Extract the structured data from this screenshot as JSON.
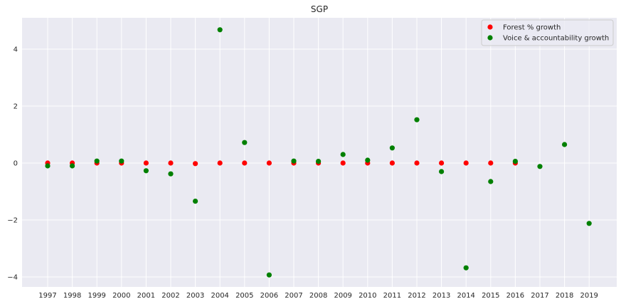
{
  "chart_data": {
    "type": "scatter",
    "title": "SGP",
    "xlabel": "",
    "ylabel": "",
    "x": [
      "1997",
      "1998",
      "1999",
      "2000",
      "2001",
      "2002",
      "2003",
      "2004",
      "2005",
      "2006",
      "2007",
      "2008",
      "2009",
      "2010",
      "2011",
      "2012",
      "2013",
      "2014",
      "2015",
      "2016",
      "2017",
      "2018",
      "2019"
    ],
    "ylim": [
      -4.35,
      5.1
    ],
    "yticks": [
      -4,
      -2,
      0,
      2,
      4
    ],
    "ytick_labels": [
      "−4",
      "−2",
      "0",
      "2",
      "4"
    ],
    "grid": true,
    "legend_position": "top-right",
    "series": [
      {
        "name": "Forest % growth",
        "color": "#ff0000",
        "x": [
          "1997",
          "1998",
          "1999",
          "2000",
          "2001",
          "2002",
          "2003",
          "2004",
          "2005",
          "2006",
          "2007",
          "2008",
          "2009",
          "2010",
          "2011",
          "2012",
          "2013",
          "2014",
          "2015",
          "2016"
        ],
        "values": [
          0.0,
          0.0,
          0.0,
          0.0,
          0.0,
          0.0,
          -0.02,
          0.0,
          0.0,
          0.0,
          0.0,
          0.0,
          0.0,
          0.0,
          0.0,
          0.0,
          0.0,
          0.0,
          0.0,
          0.0
        ]
      },
      {
        "name": "Voice & accountability growth",
        "color": "#008000",
        "x": [
          "1997",
          "1998",
          "1999",
          "2000",
          "2001",
          "2002",
          "2003",
          "2004",
          "2005",
          "2006",
          "2007",
          "2008",
          "2009",
          "2010",
          "2011",
          "2012",
          "2013",
          "2014",
          "2015",
          "2016",
          "2017",
          "2018",
          "2019"
        ],
        "values": [
          -0.1,
          -0.1,
          0.07,
          0.07,
          -0.27,
          -0.38,
          -1.34,
          4.68,
          0.72,
          -3.93,
          0.07,
          0.06,
          0.3,
          0.1,
          0.53,
          1.52,
          -0.3,
          -3.68,
          -0.65,
          0.06,
          -0.12,
          0.65,
          -2.12
        ]
      }
    ]
  }
}
